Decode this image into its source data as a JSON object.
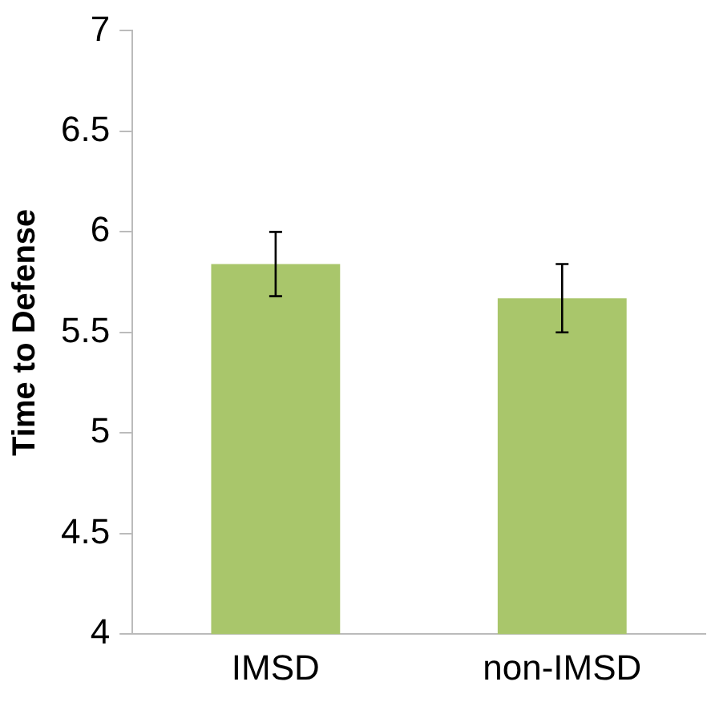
{
  "chart_data": {
    "type": "bar",
    "ylabel": "Time to Defense",
    "categories": [
      "IMSD",
      "non-IMSD"
    ],
    "values": [
      5.84,
      5.67
    ],
    "errors": [
      0.16,
      0.17
    ],
    "color": "#a9c66b",
    "ylim": [
      4,
      7
    ],
    "yticks": [
      4,
      4.5,
      5,
      5.5,
      6,
      6.5,
      7
    ],
    "grid": false,
    "legend": false
  }
}
